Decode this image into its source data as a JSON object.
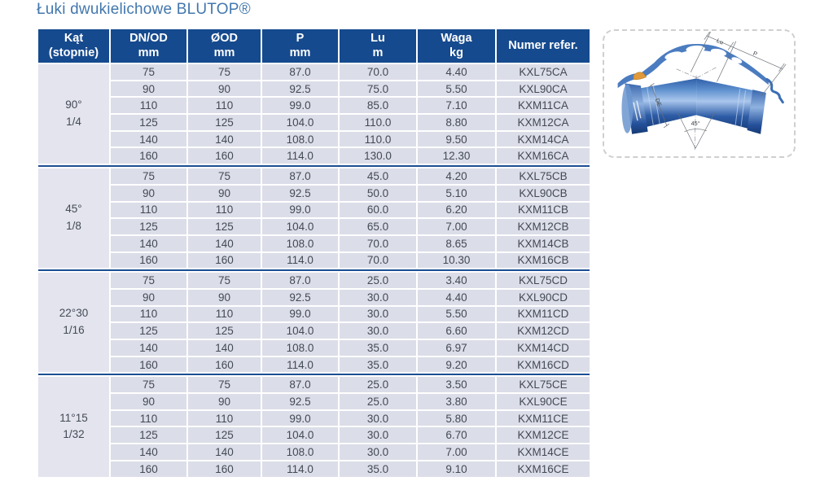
{
  "page": {
    "title": "Łuki dwukielichowe BLUTOP®"
  },
  "table": {
    "headers": [
      {
        "line1": "Kąt",
        "line2": "(stopnie)"
      },
      {
        "line1": "DN/OD",
        "line2": "mm"
      },
      {
        "line1": "ØOD",
        "line2": "mm"
      },
      {
        "line1": "P",
        "line2": "mm"
      },
      {
        "line1": "Lu",
        "line2": "m"
      },
      {
        "line1": "Waga",
        "line2": "kg"
      },
      {
        "line1": "Numer refer.",
        "line2": ""
      }
    ],
    "groups": [
      {
        "angle": "90°",
        "fraction": "1/4",
        "rows": [
          [
            "75",
            "75",
            "87.0",
            "70.0",
            "4.40",
            "KXL75CA"
          ],
          [
            "90",
            "90",
            "92.5",
            "75.0",
            "5.50",
            "KXL90CA"
          ],
          [
            "110",
            "110",
            "99.0",
            "85.0",
            "7.10",
            "KXM11CA"
          ],
          [
            "125",
            "125",
            "104.0",
            "110.0",
            "8.80",
            "KXM12CA"
          ],
          [
            "140",
            "140",
            "108.0",
            "110.0",
            "9.50",
            "KXM14CA"
          ],
          [
            "160",
            "160",
            "114.0",
            "130.0",
            "12.30",
            "KXM16CA"
          ]
        ]
      },
      {
        "angle": "45°",
        "fraction": "1/8",
        "rows": [
          [
            "75",
            "75",
            "87.0",
            "45.0",
            "4.20",
            "KXL75CB"
          ],
          [
            "90",
            "90",
            "92.5",
            "50.0",
            "5.10",
            "KXL90CB"
          ],
          [
            "110",
            "110",
            "99.0",
            "60.0",
            "6.20",
            "KXM11CB"
          ],
          [
            "125",
            "125",
            "104.0",
            "65.0",
            "7.00",
            "KXM12CB"
          ],
          [
            "140",
            "140",
            "108.0",
            "70.0",
            "8.65",
            "KXM14CB"
          ],
          [
            "160",
            "160",
            "114.0",
            "70.0",
            "10.30",
            "KXM16CB"
          ]
        ]
      },
      {
        "angle": "22°30",
        "fraction": "1/16",
        "rows": [
          [
            "75",
            "75",
            "87.0",
            "25.0",
            "3.40",
            "KXL75CD"
          ],
          [
            "90",
            "90",
            "92.5",
            "30.0",
            "4.40",
            "KXL90CD"
          ],
          [
            "110",
            "110",
            "99.0",
            "30.0",
            "5.50",
            "KXM11CD"
          ],
          [
            "125",
            "125",
            "104.0",
            "30.0",
            "6.60",
            "KXM12CD"
          ],
          [
            "140",
            "140",
            "108.0",
            "35.0",
            "6.97",
            "KXM14CD"
          ],
          [
            "160",
            "160",
            "114.0",
            "35.0",
            "9.20",
            "KXM16CD"
          ]
        ]
      },
      {
        "angle": "11°15",
        "fraction": "1/32",
        "rows": [
          [
            "75",
            "75",
            "87.0",
            "25.0",
            "3.50",
            "KXL75CE"
          ],
          [
            "90",
            "90",
            "92.5",
            "25.0",
            "3.80",
            "KXL90CE"
          ],
          [
            "110",
            "110",
            "99.0",
            "30.0",
            "5.80",
            "KXM11CE"
          ],
          [
            "125",
            "125",
            "104.0",
            "30.0",
            "6.70",
            "KXM12CE"
          ],
          [
            "140",
            "140",
            "108.0",
            "30.0",
            "7.00",
            "KXM14CE"
          ],
          [
            "160",
            "160",
            "114.0",
            "35.0",
            "9.10",
            "KXM16CE"
          ]
        ]
      }
    ]
  },
  "diagram": {
    "labels": {
      "lu": "Lu",
      "p": "P",
      "de": "DE",
      "angle": "45°"
    }
  },
  "colors": {
    "header_bg": "#164a8e",
    "row_bg": "#dbdde8",
    "group_bg": "#e3e4ee",
    "separator_line": "#1c4f92",
    "title_blue": "#4277ad",
    "cell_text": "#434a54",
    "pipe_blue": "#2f5fa9"
  }
}
